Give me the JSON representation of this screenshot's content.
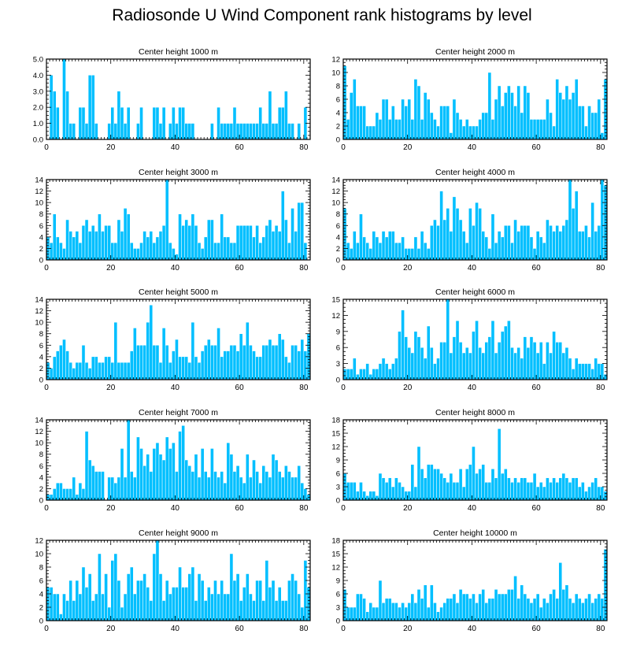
{
  "title": "Radiosonde U Wind Component rank histograms by level",
  "colors": {
    "bar_fill": "#00bfff",
    "bar_edge": "#ffffff",
    "axis": "#000000",
    "background": "#ffffff"
  },
  "chart_data": [
    {
      "type": "bar",
      "title": "Center height 1000 m",
      "xlabel": "",
      "ylabel": "",
      "xlim": [
        0,
        82
      ],
      "ylim": [
        0,
        5
      ],
      "xticks": [
        0,
        20,
        40,
        60,
        80
      ],
      "yticks": [
        0,
        1,
        2,
        3,
        4,
        5
      ],
      "ytick_labels": [
        "0.0",
        "1.0",
        "2.0",
        "3.0",
        "4.0",
        "5.0"
      ],
      "values": [
        0,
        4,
        3,
        2,
        0,
        5,
        3,
        1,
        1,
        0,
        2,
        2,
        1,
        4,
        4,
        1,
        0,
        0,
        0,
        1,
        2,
        1,
        3,
        2,
        1,
        2,
        0,
        0,
        1,
        2,
        0,
        0,
        0,
        2,
        2,
        1,
        2,
        0,
        1,
        2,
        1,
        2,
        2,
        1,
        1,
        1,
        0,
        0,
        0,
        0,
        0,
        1,
        0,
        2,
        1,
        1,
        1,
        1,
        2,
        1,
        1,
        1,
        1,
        1,
        1,
        1,
        2,
        1,
        1,
        3,
        1,
        1,
        2,
        2,
        3,
        1,
        1,
        0,
        1,
        0,
        2
      ]
    },
    {
      "type": "bar",
      "title": "Center height 2000 m",
      "xlabel": "",
      "ylabel": "",
      "xlim": [
        0,
        82
      ],
      "ylim": [
        0,
        12
      ],
      "xticks": [
        0,
        20,
        40,
        60,
        80
      ],
      "yticks": [
        0,
        2,
        4,
        6,
        8,
        10,
        12
      ],
      "ytick_labels": [
        "0",
        "2",
        "4",
        "6",
        "8",
        "10",
        "12"
      ],
      "values": [
        11,
        3,
        7,
        9,
        5,
        5,
        5,
        2,
        2,
        2,
        4,
        3,
        6,
        6,
        3,
        5,
        3,
        3,
        6,
        5,
        6,
        3,
        9,
        8,
        3,
        7,
        6,
        4,
        3,
        2,
        5,
        5,
        5,
        1,
        6,
        4,
        3,
        2,
        3,
        2,
        2,
        2,
        3,
        4,
        4,
        10,
        3,
        6,
        8,
        5,
        7,
        8,
        7,
        5,
        8,
        4,
        8,
        7,
        3,
        3,
        3,
        3,
        3,
        6,
        4,
        2,
        9,
        7,
        6,
        8,
        6,
        7,
        9,
        5,
        5,
        2,
        5,
        4,
        4,
        6,
        1,
        9
      ]
    },
    {
      "type": "bar",
      "title": "Center height 3000 m",
      "xlabel": "",
      "ylabel": "",
      "xlim": [
        0,
        82
      ],
      "ylim": [
        0,
        14
      ],
      "xticks": [
        0,
        20,
        40,
        60,
        80
      ],
      "yticks": [
        0,
        2,
        4,
        6,
        8,
        10,
        12,
        14
      ],
      "ytick_labels": [
        "0",
        "2",
        "4",
        "6",
        "8",
        "10",
        "12",
        "14"
      ],
      "values": [
        4,
        3,
        8,
        4,
        3,
        2,
        7,
        5,
        4,
        5,
        3,
        6,
        7,
        5,
        6,
        5,
        8,
        5,
        6,
        6,
        3,
        3,
        7,
        5,
        9,
        8,
        3,
        2,
        2,
        3,
        5,
        4,
        5,
        3,
        4,
        5,
        6,
        14,
        3,
        2,
        1,
        8,
        6,
        7,
        6,
        8,
        6,
        3,
        2,
        4,
        7,
        7,
        3,
        3,
        8,
        4,
        4,
        3,
        3,
        6,
        6,
        6,
        6,
        6,
        4,
        6,
        3,
        4,
        6,
        7,
        5,
        6,
        5,
        12,
        7,
        3,
        9,
        5,
        10,
        10,
        3
      ]
    },
    {
      "type": "bar",
      "title": "Center height 4000 m",
      "xlabel": "",
      "ylabel": "",
      "xlim": [
        0,
        82
      ],
      "ylim": [
        0,
        14
      ],
      "xticks": [
        0,
        20,
        40,
        60,
        80
      ],
      "yticks": [
        0,
        2,
        4,
        6,
        8,
        10,
        12,
        14
      ],
      "ytick_labels": [
        "0",
        "2",
        "4",
        "6",
        "8",
        "10",
        "12",
        "14"
      ],
      "values": [
        9,
        3,
        2,
        5,
        3,
        8,
        4,
        3,
        2,
        5,
        4,
        3,
        5,
        4,
        5,
        5,
        3,
        3,
        4,
        2,
        2,
        2,
        4,
        2,
        5,
        3,
        2,
        6,
        7,
        6,
        12,
        7,
        9,
        5,
        11,
        9,
        7,
        5,
        3,
        9,
        6,
        10,
        9,
        5,
        4,
        2,
        8,
        3,
        5,
        4,
        6,
        6,
        3,
        7,
        5,
        6,
        6,
        6,
        4,
        2,
        5,
        4,
        3,
        7,
        6,
        5,
        6,
        5,
        6,
        7,
        14,
        9,
        12,
        5,
        5,
        6,
        4,
        10,
        5,
        6,
        14,
        13
      ]
    },
    {
      "type": "bar",
      "title": "Center height 5000 m",
      "xlabel": "",
      "ylabel": "",
      "xlim": [
        0,
        82
      ],
      "ylim": [
        0,
        14
      ],
      "xticks": [
        0,
        20,
        40,
        60,
        80
      ],
      "yticks": [
        0,
        2,
        4,
        6,
        8,
        10,
        12,
        14
      ],
      "ytick_labels": [
        "0",
        "2",
        "4",
        "6",
        "8",
        "10",
        "12",
        "14"
      ],
      "values": [
        3,
        2,
        4,
        5,
        6,
        7,
        5,
        3,
        2,
        3,
        3,
        6,
        3,
        2,
        4,
        4,
        3,
        3,
        4,
        4,
        3,
        10,
        3,
        3,
        3,
        3,
        5,
        9,
        6,
        6,
        6,
        10,
        13,
        6,
        6,
        3,
        9,
        6,
        3,
        5,
        7,
        4,
        4,
        4,
        3,
        10,
        4,
        3,
        5,
        6,
        7,
        6,
        6,
        9,
        4,
        5,
        5,
        6,
        6,
        5,
        8,
        6,
        10,
        6,
        5,
        4,
        4,
        6,
        6,
        7,
        6,
        6,
        8,
        7,
        4,
        3,
        6,
        6,
        5,
        7,
        5,
        8
      ]
    },
    {
      "type": "bar",
      "title": "Center height 6000 m",
      "xlabel": "",
      "ylabel": "",
      "xlim": [
        0,
        82
      ],
      "ylim": [
        0,
        15
      ],
      "xticks": [
        0,
        20,
        40,
        60,
        80
      ],
      "yticks": [
        0,
        3,
        6,
        9,
        12,
        15
      ],
      "ytick_labels": [
        "0",
        "3",
        "6",
        "9",
        "12",
        "15"
      ],
      "values": [
        2,
        2,
        2,
        4,
        1,
        2,
        2,
        3,
        1,
        2,
        2,
        3,
        4,
        3,
        2,
        3,
        4,
        9,
        13,
        8,
        6,
        5,
        9,
        8,
        6,
        4,
        10,
        6,
        3,
        4,
        7,
        7,
        15,
        5,
        8,
        11,
        7,
        5,
        6,
        5,
        9,
        11,
        6,
        5,
        7,
        8,
        11,
        5,
        7,
        9,
        10,
        11,
        6,
        5,
        6,
        4,
        8,
        6,
        8,
        7,
        5,
        7,
        3,
        7,
        5,
        9,
        7,
        7,
        5,
        6,
        4,
        2,
        4,
        3,
        3,
        3,
        3,
        2,
        4,
        3,
        3,
        1
      ]
    },
    {
      "type": "bar",
      "title": "Center height 7000 m",
      "xlabel": "",
      "ylabel": "",
      "xlim": [
        0,
        82
      ],
      "ylim": [
        0,
        14
      ],
      "xticks": [
        0,
        20,
        40,
        60,
        80
      ],
      "yticks": [
        0,
        2,
        4,
        6,
        8,
        10,
        12,
        14
      ],
      "ytick_labels": [
        "0",
        "2",
        "4",
        "6",
        "8",
        "10",
        "12",
        "14"
      ],
      "values": [
        1,
        1,
        2,
        3,
        3,
        2,
        2,
        2,
        4,
        1,
        3,
        2,
        12,
        7,
        6,
        5,
        5,
        5,
        0,
        4,
        4,
        3,
        4,
        9,
        4,
        14,
        5,
        4,
        11,
        9,
        6,
        8,
        5,
        9,
        10,
        8,
        7,
        11,
        9,
        10,
        5,
        12,
        13,
        7,
        6,
        5,
        8,
        4,
        9,
        5,
        4,
        9,
        5,
        4,
        5,
        3,
        10,
        8,
        5,
        6,
        4,
        3,
        8,
        4,
        7,
        5,
        3,
        6,
        5,
        4,
        8,
        7,
        5,
        4,
        6,
        5,
        4,
        4,
        6,
        3,
        2,
        1
      ]
    },
    {
      "type": "bar",
      "title": "Center height 8000 m",
      "xlabel": "",
      "ylabel": "",
      "xlim": [
        0,
        82
      ],
      "ylim": [
        0,
        18
      ],
      "xticks": [
        0,
        20,
        40,
        60,
        80
      ],
      "yticks": [
        0,
        3,
        6,
        9,
        12,
        15,
        18
      ],
      "ytick_labels": [
        "0",
        "3",
        "6",
        "9",
        "12",
        "15",
        "18"
      ],
      "values": [
        6,
        4,
        4,
        4,
        2,
        4,
        2,
        1,
        2,
        2,
        1,
        6,
        5,
        4,
        5,
        3,
        5,
        4,
        3,
        2,
        2,
        8,
        3,
        12,
        7,
        5,
        8,
        8,
        7,
        7,
        6,
        5,
        4,
        6,
        4,
        4,
        7,
        3,
        7,
        8,
        12,
        6,
        7,
        8,
        4,
        4,
        7,
        5,
        16,
        6,
        7,
        5,
        4,
        5,
        4,
        5,
        5,
        4,
        4,
        6,
        3,
        4,
        3,
        5,
        4,
        5,
        4,
        5,
        6,
        5,
        4,
        5,
        5,
        3,
        4,
        2,
        3,
        4,
        5,
        3,
        3,
        2
      ]
    },
    {
      "type": "bar",
      "title": "Center height 9000 m",
      "xlabel": "",
      "ylabel": "",
      "xlim": [
        0,
        82
      ],
      "ylim": [
        0,
        12
      ],
      "xticks": [
        0,
        20,
        40,
        60,
        80
      ],
      "yticks": [
        0,
        2,
        4,
        6,
        8,
        10,
        12
      ],
      "ytick_labels": [
        "0",
        "2",
        "4",
        "6",
        "8",
        "10",
        "12"
      ],
      "values": [
        5,
        5,
        4,
        4,
        1,
        4,
        3,
        6,
        3,
        6,
        4,
        8,
        5,
        7,
        3,
        4,
        10,
        4,
        7,
        2,
        9,
        10,
        6,
        2,
        4,
        7,
        8,
        4,
        6,
        6,
        7,
        5,
        3,
        10,
        12,
        7,
        3,
        6,
        4,
        5,
        5,
        8,
        5,
        5,
        7,
        8,
        3,
        7,
        6,
        3,
        5,
        4,
        6,
        4,
        6,
        4,
        4,
        10,
        6,
        7,
        3,
        5,
        7,
        4,
        3,
        6,
        6,
        3,
        9,
        5,
        6,
        3,
        5,
        3,
        3,
        6,
        7,
        6,
        4,
        2,
        9,
        5
      ]
    },
    {
      "type": "bar",
      "title": "Center height 10000 m",
      "xlabel": "",
      "ylabel": "",
      "xlim": [
        0,
        82
      ],
      "ylim": [
        0,
        18
      ],
      "xticks": [
        0,
        20,
        40,
        60,
        80
      ],
      "yticks": [
        0,
        3,
        6,
        9,
        12,
        15,
        18
      ],
      "ytick_labels": [
        "0",
        "3",
        "6",
        "9",
        "12",
        "15",
        "18"
      ],
      "values": [
        7,
        3,
        3,
        3,
        6,
        6,
        5,
        2,
        4,
        3,
        3,
        9,
        4,
        5,
        5,
        4,
        4,
        3,
        4,
        3,
        4,
        6,
        4,
        7,
        5,
        8,
        3,
        8,
        4,
        2,
        3,
        4,
        5,
        5,
        6,
        4,
        7,
        6,
        6,
        5,
        6,
        4,
        6,
        7,
        4,
        5,
        5,
        7,
        6,
        6,
        6,
        7,
        7,
        10,
        5,
        8,
        6,
        5,
        4,
        5,
        6,
        3,
        5,
        4,
        6,
        7,
        5,
        13,
        7,
        8,
        5,
        4,
        6,
        5,
        4,
        5,
        6,
        4,
        5,
        6,
        5,
        16
      ]
    }
  ]
}
